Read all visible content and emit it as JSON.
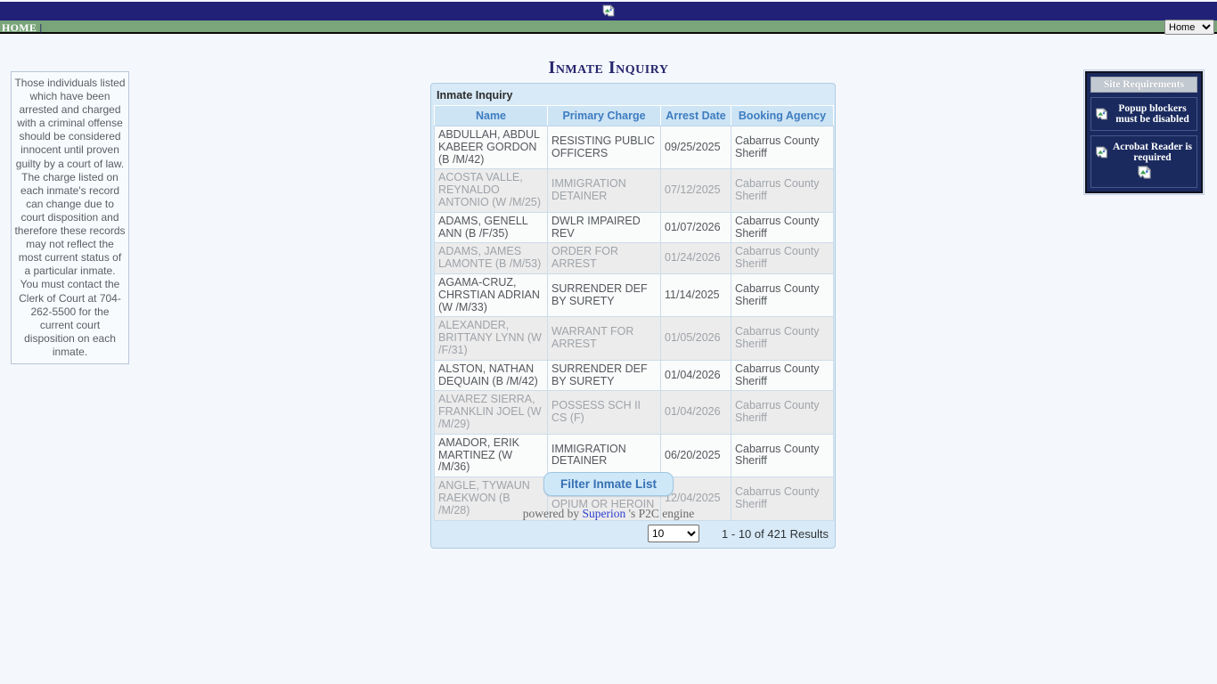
{
  "nav": {
    "home_label": "HOME",
    "separator": "|",
    "menu_value": "Home"
  },
  "page_title": "Inmate Inquiry",
  "disclaimer": "Those individuals listed which have been arrested and charged with a criminal offense should be considered innocent until proven guilty by a court of law. The charge listed on each inmate's record can change due to court disposition and therefore these records may not reflect the most current status of a particular inmate. You must contact the Clerk of Court at 704-262-5500 for the current court disposition on each inmate.",
  "panel": {
    "title": "Inmate Inquiry",
    "columns": [
      "Name",
      "Primary Charge",
      "Arrest Date",
      "Booking Agency"
    ],
    "rows": [
      {
        "name": "ABDULLAH, ABDUL KABEER GORDON (B /M/42)",
        "charge": "RESISTING PUBLIC OFFICERS",
        "arrest_date": "09/25/2025",
        "booking_agency": "Cabarrus County Sheriff"
      },
      {
        "name": "ACOSTA VALLE, REYNALDO ANTONIO (W /M/25)",
        "charge": "IMMIGRATION DETAINER",
        "arrest_date": "07/12/2025",
        "booking_agency": "Cabarrus County Sheriff"
      },
      {
        "name": "ADAMS, GENELL ANN (B /F/35)",
        "charge": "DWLR IMPAIRED REV",
        "arrest_date": "01/07/2026",
        "booking_agency": "Cabarrus County Sheriff"
      },
      {
        "name": "ADAMS, JAMES LAMONTE (B /M/53)",
        "charge": "ORDER FOR ARREST",
        "arrest_date": "01/24/2026",
        "booking_agency": "Cabarrus County Sheriff"
      },
      {
        "name": "AGAMA-CRUZ, CHRSTIAN ADRIAN (W /M/33)",
        "charge": "SURRENDER DEF BY SURETY",
        "arrest_date": "11/14/2025",
        "booking_agency": "Cabarrus County Sheriff"
      },
      {
        "name": "ALEXANDER, BRITTANY LYNN (W /F/31)",
        "charge": "WARRANT FOR ARREST",
        "arrest_date": "01/05/2026",
        "booking_agency": "Cabarrus County Sheriff"
      },
      {
        "name": "ALSTON, NATHAN DEQUAIN (B /M/42)",
        "charge": "SURRENDER DEF BY SURETY",
        "arrest_date": "01/04/2026",
        "booking_agency": "Cabarrus County Sheriff"
      },
      {
        "name": "ALVAREZ SIERRA, FRANKLIN JOEL (W /M/29)",
        "charge": "POSSESS SCH II CS (F)",
        "arrest_date": "01/04/2026",
        "booking_agency": "Cabarrus County Sheriff"
      },
      {
        "name": "AMADOR, ERIK MARTINEZ (W /M/36)",
        "charge": "IMMIGRATION DETAINER",
        "arrest_date": "06/20/2025",
        "booking_agency": "Cabarrus County Sheriff"
      },
      {
        "name": "ANGLE, TYWAUN RAEKWON (B /M/28)",
        "charge": "TRAFFICKING IN OPIUM OR HEROIN",
        "arrest_date": "12/04/2025",
        "booking_agency": "Cabarrus County Sheriff"
      }
    ],
    "pagination": {
      "page_size": "10",
      "results_text": "1 - 10 of 421 Results"
    }
  },
  "filter_button_label": "Filter Inmate List",
  "powered_by": {
    "prefix": "powered by",
    "link": "Superion",
    "suffix": "'s P2C engine"
  },
  "site_requirements": {
    "title": "Site Requirements",
    "items": [
      "Popup blockers must be disabled",
      "Acrobat Reader is required"
    ]
  },
  "icons": {
    "broken_image": "broken-image-icon"
  },
  "colors": {
    "topbar_navy": "#212178",
    "nav_green": "#7aa57a",
    "panel_blue": "#d8eaf7",
    "header_text_blue": "#3e7cc0",
    "title_navy": "#26266e",
    "button_text": "#3670b3",
    "sitereq_navy": "#1a2a5e"
  }
}
